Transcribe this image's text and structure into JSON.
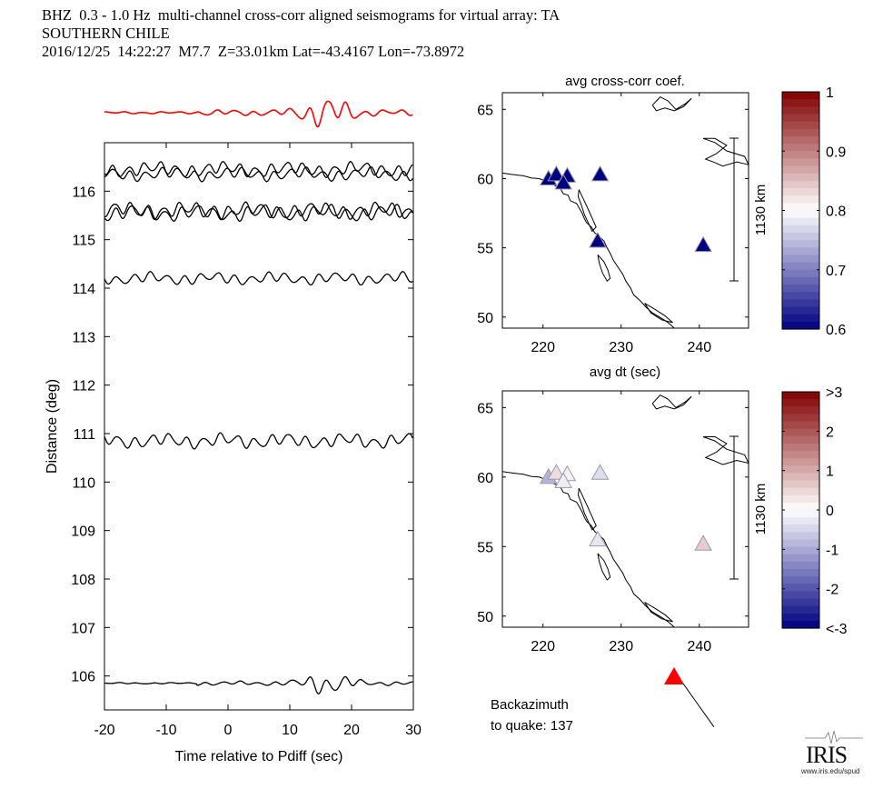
{
  "header": {
    "line1": "BHZ  0.3 - 1.0 Hz  multi-channel cross-corr aligned seismograms for virtual array: TA",
    "line2": "SOUTHERN CHILE",
    "line3": "2016/12/25  14:22:27  M7.7  Z=33.01km Lat=-43.4167 Lon=-73.8972"
  },
  "logo": {
    "name": "IRIS",
    "url": "www.iris.edu/spud"
  },
  "backazimuth": {
    "label1": "Backazimuth",
    "label2": "to quake:  137",
    "value": 137
  },
  "colors": {
    "reference_trace": "#ff0000",
    "trace": "#000000",
    "quake_marker": "#ff0000"
  },
  "chart_data": [
    {
      "type": "line",
      "name": "record-section",
      "title": "",
      "xlabel": "Time relative to Pdiff (sec)",
      "ylabel": "Distance (deg)",
      "xlim": [
        -20,
        30
      ],
      "ylim": [
        105.3,
        117.0
      ],
      "xticks": [
        -20,
        -10,
        0,
        10,
        20,
        30
      ],
      "xtick_labels": [
        "-20",
        "-10",
        "0",
        "10",
        "20",
        "30"
      ],
      "yticks": [
        106,
        107,
        108,
        109,
        110,
        111,
        112,
        113,
        114,
        115,
        116
      ],
      "ytick_labels": [
        "106",
        "107",
        "108",
        "109",
        "110",
        "111",
        "112",
        "113",
        "114",
        "115",
        "116"
      ],
      "reference_trace": {
        "name": "stack",
        "color": "#ff0000"
      },
      "series": [
        {
          "name": "trace-1",
          "distance": 116.45,
          "seed": 1,
          "amp": 0.18
        },
        {
          "name": "trace-2",
          "distance": 116.35,
          "seed": 2,
          "amp": 0.16
        },
        {
          "name": "trace-3",
          "distance": 115.6,
          "seed": 3,
          "amp": 0.2
        },
        {
          "name": "trace-4",
          "distance": 115.55,
          "seed": 4,
          "amp": 0.2
        },
        {
          "name": "trace-5",
          "distance": 114.2,
          "seed": 5,
          "amp": 0.15
        },
        {
          "name": "trace-6",
          "distance": 110.85,
          "seed": 6,
          "amp": 0.18
        },
        {
          "name": "trace-7",
          "distance": 105.85,
          "seed": 7,
          "amp": 0.14
        }
      ]
    },
    {
      "type": "scatter",
      "name": "map-cross-corr",
      "title": "avg cross-corr coef.",
      "xlabel": "avg dt (sec)",
      "ylabel": "",
      "xlim": [
        214.8,
        246.3
      ],
      "ylim": [
        49.2,
        66.2
      ],
      "xticks": [
        220,
        230,
        240
      ],
      "xtick_labels": [
        "220",
        "230",
        "240"
      ],
      "yticks": [
        50,
        55,
        60,
        65
      ],
      "ytick_labels": [
        "50",
        "55",
        "60",
        "65"
      ],
      "scale_label": "1130 km",
      "colorbar": {
        "min": 0.6,
        "max": 1.0,
        "ticks": [
          "1",
          "0.9",
          "0.8",
          "0.7",
          "0.6"
        ]
      },
      "points": [
        {
          "x": 220.7,
          "y": 60.0,
          "value": 0.6
        },
        {
          "x": 221.7,
          "y": 60.3,
          "value": 0.6
        },
        {
          "x": 223.1,
          "y": 60.2,
          "value": 0.6
        },
        {
          "x": 222.6,
          "y": 59.7,
          "value": 0.6
        },
        {
          "x": 227.3,
          "y": 60.3,
          "value": 0.6
        },
        {
          "x": 227.0,
          "y": 55.5,
          "value": 0.6
        },
        {
          "x": 240.5,
          "y": 55.2,
          "value": 0.6
        }
      ]
    },
    {
      "type": "scatter",
      "name": "map-dt",
      "title": "avg dt (sec)",
      "xlabel": "",
      "ylabel": "",
      "xlim": [
        214.8,
        246.3
      ],
      "ylim": [
        49.2,
        66.2
      ],
      "xticks": [
        220,
        230,
        240
      ],
      "xtick_labels": [
        "220",
        "230",
        "240"
      ],
      "yticks": [
        50,
        55,
        60,
        65
      ],
      "ytick_labels": [
        "50",
        "55",
        "60",
        "65"
      ],
      "scale_label": "1130 km",
      "colorbar": {
        "min": -3,
        "max": 3,
        "ticks": [
          ">3",
          "2",
          "1",
          "0",
          "-1",
          "-2",
          "<-3"
        ]
      },
      "points": [
        {
          "x": 220.7,
          "y": 60.0,
          "value": -0.9
        },
        {
          "x": 221.7,
          "y": 60.3,
          "value": 0.4
        },
        {
          "x": 223.1,
          "y": 60.2,
          "value": 0.2
        },
        {
          "x": 222.6,
          "y": 59.7,
          "value": -0.2
        },
        {
          "x": 227.3,
          "y": 60.3,
          "value": -0.4
        },
        {
          "x": 227.0,
          "y": 55.5,
          "value": -0.3
        },
        {
          "x": 240.5,
          "y": 55.2,
          "value": 0.6
        }
      ]
    }
  ]
}
